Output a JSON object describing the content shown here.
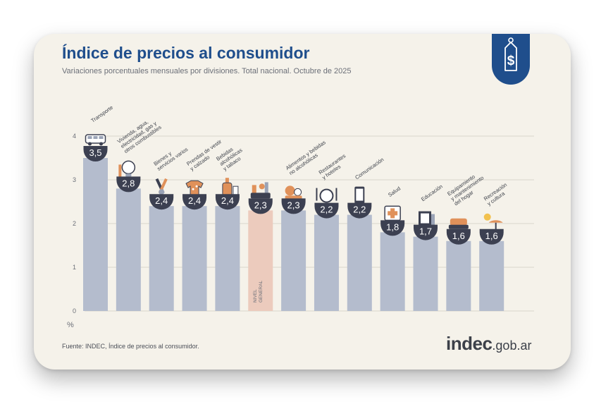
{
  "header": {
    "title": "Índice de precios al consumidor",
    "subtitle": "Variaciones porcentuales mensuales por divisiones. Total nacional. Octubre de 2025"
  },
  "footer": {
    "source": "Fuente: INDEC, Índice de precios al consumidor.",
    "brand_main": "indec",
    "brand_domain": ".gob.ar"
  },
  "colors": {
    "bar": "#b4bccd",
    "bar_general": "#eccbbd",
    "bubble": "#3c4051",
    "title": "#1f4e8c",
    "grid": "#d9d6cc"
  },
  "chart_data": {
    "type": "bar",
    "title": "Índice de precios al consumidor",
    "subtitle": "Variaciones porcentuales mensuales por divisiones. Total nacional. Octubre de 2025",
    "ylabel": "%",
    "ylim": [
      0,
      4
    ],
    "yticks": [
      0,
      1,
      2,
      3,
      4
    ],
    "grid": true,
    "categories": [
      "Transporte",
      "Vivienda, agua, electricidad, gas y otros combustibles",
      "Bienes y servicios varios",
      "Prendas de vestir y calzado",
      "Bebidas alcohólicas y tabaco",
      "NIVEL GENERAL",
      "Alimentos y bebidas no alcohólicas",
      "Restaurantes y hoteles",
      "Comunicación",
      "Salud",
      "Educación",
      "Equipamiento y mantenimiento del hogar",
      "Recreación y cultura"
    ],
    "label_lines": [
      [
        "Transporte"
      ],
      [
        "Vivienda, agua,",
        "electricidad, gas y",
        "otros combustibles"
      ],
      [
        "Bienes y",
        "servicios varios"
      ],
      [
        "Prendas de vestir",
        "y calzado"
      ],
      [
        "Bebidas",
        "alcohólicas",
        "y tabaco"
      ],
      [
        "NIVEL",
        "GENERAL"
      ],
      [
        "Alimentos y bebidas",
        "no alcohólicas"
      ],
      [
        "Restaurantes",
        "y hoteles"
      ],
      [
        "Comunicación"
      ],
      [
        "Salud"
      ],
      [
        "Educación"
      ],
      [
        "Equipamiento",
        "y mantenimiento",
        "del hogar"
      ],
      [
        "Recreación",
        "y cultura"
      ]
    ],
    "values": [
      3.5,
      2.8,
      2.4,
      2.4,
      2.4,
      2.3,
      2.3,
      2.2,
      2.2,
      1.8,
      1.7,
      1.6,
      1.6
    ],
    "value_labels": [
      "3,5",
      "2,8",
      "2,4",
      "2,4",
      "2,4",
      "2,3",
      "2,3",
      "2,2",
      "2,2",
      "1,8",
      "1,7",
      "1,6",
      "1,6"
    ],
    "icons": [
      "bus-icon",
      "lightbulb-icon",
      "tools-icon",
      "shirt-icon",
      "bottle-icon",
      "basket-icon",
      "food-icon",
      "plate-icon",
      "phone-icon",
      "health-cross-icon",
      "book-icon",
      "sofa-icon",
      "beach-icon"
    ],
    "highlight": "NIVEL GENERAL"
  }
}
